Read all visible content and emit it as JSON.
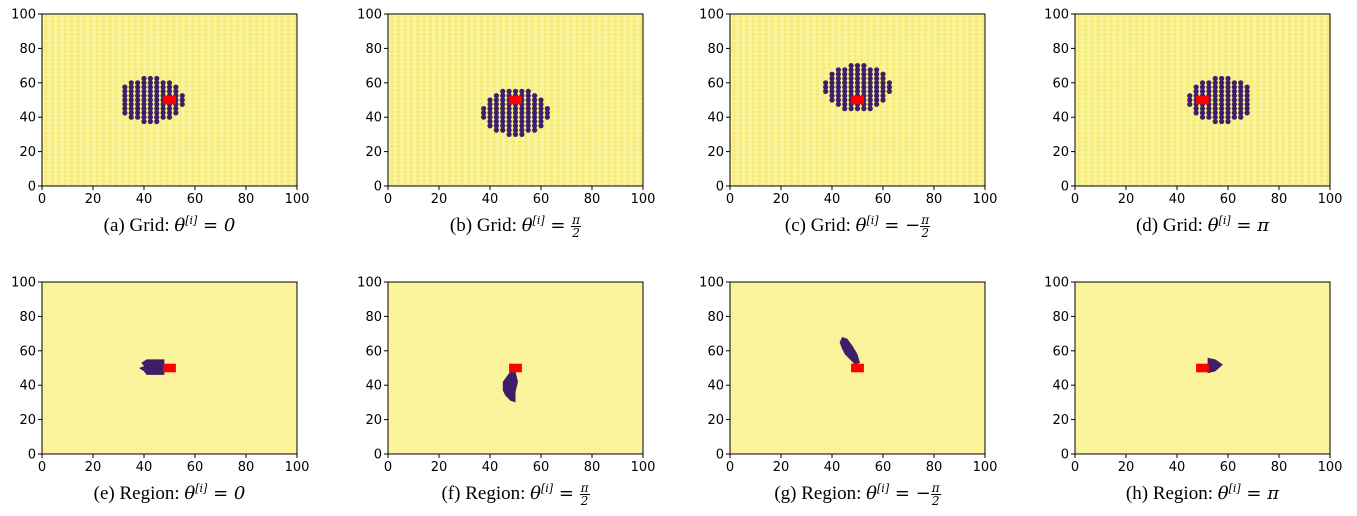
{
  "chart_data": [
    {
      "id": "a",
      "type": "scatter",
      "label": "(a) Grid:",
      "theta": "0",
      "theta_kind": "plain",
      "xlim": [
        0,
        100
      ],
      "ylim": [
        0,
        100
      ],
      "xticks": [
        "0",
        "20",
        "40",
        "60",
        "80",
        "100"
      ],
      "yticks": [
        "0",
        "20",
        "40",
        "60",
        "80",
        "100"
      ],
      "background": "grid",
      "grid_spacing": 2.5,
      "blob": {
        "shape": "ellipse",
        "cx": 43,
        "cy": 50,
        "rx": 13,
        "ry": 13,
        "xmin": 31,
        "xmax": 56
      },
      "target": {
        "x": 50,
        "y": 50,
        "size": 5
      }
    },
    {
      "id": "b",
      "type": "scatter",
      "label": "(b) Grid:",
      "theta": "π/2",
      "theta_kind": "pos_half_pi",
      "xlim": [
        0,
        100
      ],
      "ylim": [
        0,
        100
      ],
      "xticks": [
        "0",
        "20",
        "40",
        "60",
        "80",
        "100"
      ],
      "yticks": [
        "0",
        "20",
        "40",
        "60",
        "80",
        "100"
      ],
      "background": "grid",
      "grid_spacing": 2.5,
      "blob": {
        "shape": "ellipse",
        "cx": 50,
        "cy": 43,
        "rx": 13,
        "ry": 14,
        "ymin": 29,
        "ymax": 60
      },
      "target": {
        "x": 50,
        "y": 50,
        "size": 5
      }
    },
    {
      "id": "c",
      "type": "scatter",
      "label": "(c) Grid:",
      "theta": "−π/2",
      "theta_kind": "neg_half_pi",
      "xlim": [
        0,
        100
      ],
      "ylim": [
        0,
        100
      ],
      "xticks": [
        "0",
        "20",
        "40",
        "60",
        "80",
        "100"
      ],
      "yticks": [
        "0",
        "20",
        "40",
        "60",
        "80",
        "100"
      ],
      "background": "grid",
      "grid_spacing": 2.5,
      "blob": {
        "shape": "ellipse",
        "cx": 50,
        "cy": 57,
        "rx": 13,
        "ry": 14,
        "ymin": 40,
        "ymax": 72
      },
      "target": {
        "x": 50,
        "y": 50,
        "size": 5
      }
    },
    {
      "id": "d",
      "type": "scatter",
      "label": "(d) Grid:",
      "theta": "π",
      "theta_kind": "plain",
      "xlim": [
        0,
        100
      ],
      "ylim": [
        0,
        100
      ],
      "xticks": [
        "0",
        "20",
        "40",
        "60",
        "80",
        "100"
      ],
      "yticks": [
        "0",
        "20",
        "40",
        "60",
        "80",
        "100"
      ],
      "background": "grid",
      "grid_spacing": 2.5,
      "blob": {
        "shape": "ellipse",
        "cx": 57,
        "cy": 50,
        "rx": 13,
        "ry": 13,
        "xmin": 43,
        "xmax": 69
      },
      "target": {
        "x": 50,
        "y": 50,
        "size": 5
      }
    },
    {
      "id": "e",
      "type": "heatmap",
      "label": "(e) Region:",
      "theta": "0",
      "theta_kind": "plain",
      "xlim": [
        0,
        100
      ],
      "ylim": [
        0,
        100
      ],
      "xticks": [
        "0",
        "20",
        "40",
        "60",
        "80",
        "100"
      ],
      "yticks": [
        "0",
        "20",
        "40",
        "60",
        "80",
        "100"
      ],
      "background": "solid",
      "region": [
        [
          39,
          53
        ],
        [
          41,
          55
        ],
        [
          48,
          55
        ],
        [
          48,
          46
        ],
        [
          41,
          46
        ],
        [
          40,
          48
        ],
        [
          38,
          50
        ],
        [
          40,
          51
        ]
      ],
      "target": {
        "x": 50,
        "y": 50,
        "size": 5
      }
    },
    {
      "id": "f",
      "type": "heatmap",
      "label": "(f) Region:",
      "theta": "π/2",
      "theta_kind": "pos_half_pi",
      "xlim": [
        0,
        100
      ],
      "ylim": [
        0,
        100
      ],
      "xticks": [
        "0",
        "20",
        "40",
        "60",
        "80",
        "100"
      ],
      "yticks": [
        "0",
        "20",
        "40",
        "60",
        "80",
        "100"
      ],
      "background": "solid",
      "region": [
        [
          48,
          48
        ],
        [
          50,
          48
        ],
        [
          51,
          42
        ],
        [
          50,
          36
        ],
        [
          50,
          30
        ],
        [
          48,
          31
        ],
        [
          46,
          34
        ],
        [
          45,
          37
        ],
        [
          45,
          42
        ],
        [
          47,
          46
        ]
      ],
      "target": {
        "x": 50,
        "y": 50,
        "size": 5
      }
    },
    {
      "id": "g",
      "type": "heatmap",
      "label": "(g) Region:",
      "theta": "−π/2",
      "theta_kind": "neg_half_pi",
      "xlim": [
        0,
        100
      ],
      "ylim": [
        0,
        100
      ],
      "xticks": [
        "0",
        "20",
        "40",
        "60",
        "80",
        "100"
      ],
      "yticks": [
        "0",
        "20",
        "40",
        "60",
        "80",
        "100"
      ],
      "background": "solid",
      "region": [
        [
          44,
          68
        ],
        [
          46,
          67
        ],
        [
          48,
          63
        ],
        [
          50,
          58
        ],
        [
          51,
          53
        ],
        [
          49,
          52
        ],
        [
          47,
          55
        ],
        [
          45,
          58
        ],
        [
          44,
          61
        ],
        [
          43,
          65
        ]
      ],
      "target": {
        "x": 50,
        "y": 50,
        "size": 5
      }
    },
    {
      "id": "h",
      "type": "heatmap",
      "label": "(h) Region:",
      "theta": "π",
      "theta_kind": "plain",
      "xlim": [
        0,
        100
      ],
      "ylim": [
        0,
        100
      ],
      "xticks": [
        "0",
        "20",
        "40",
        "60",
        "80",
        "100"
      ],
      "yticks": [
        "0",
        "20",
        "40",
        "60",
        "80",
        "100"
      ],
      "background": "solid",
      "region": [
        [
          52,
          56
        ],
        [
          55,
          55
        ],
        [
          58,
          52
        ],
        [
          55,
          48
        ],
        [
          52,
          47
        ]
      ],
      "target": {
        "x": 50,
        "y": 50,
        "size": 5
      }
    }
  ],
  "colors": {
    "background": "#fbf39b",
    "grid_dot": "#f3ea6f",
    "blob": "#3b1f6b",
    "target": "#ff0000",
    "frame": "#000000"
  }
}
